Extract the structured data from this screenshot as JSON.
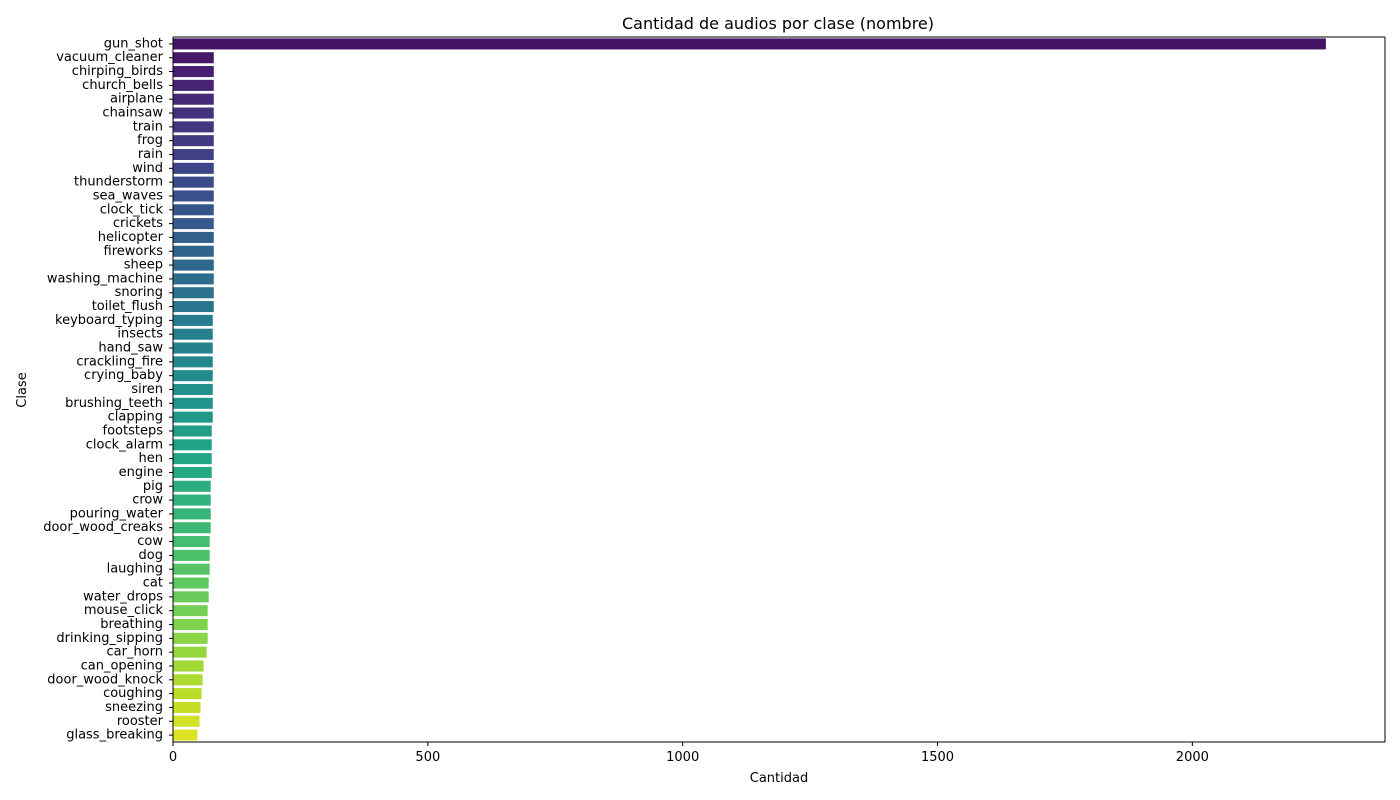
{
  "chart_data": {
    "type": "bar",
    "orientation": "horizontal",
    "title": "Cantidad de audios por clase (nombre)",
    "xlabel": "Cantidad",
    "ylabel": "Clase",
    "xlim": [
      0,
      2378
    ],
    "xticks": [
      0,
      500,
      1000,
      1500,
      2000
    ],
    "grid": false,
    "palette": "viridis",
    "categories": [
      "gun_shot",
      "vacuum_cleaner",
      "chirping_birds",
      "church_bells",
      "airplane",
      "chainsaw",
      "train",
      "frog",
      "rain",
      "wind",
      "thunderstorm",
      "sea_waves",
      "clock_tick",
      "crickets",
      "helicopter",
      "fireworks",
      "sheep",
      "washing_machine",
      "snoring",
      "toilet_flush",
      "keyboard_typing",
      "insects",
      "hand_saw",
      "crackling_fire",
      "crying_baby",
      "siren",
      "brushing_teeth",
      "clapping",
      "footsteps",
      "clock_alarm",
      "hen",
      "engine",
      "pig",
      "crow",
      "pouring_water",
      "door_wood_creaks",
      "cow",
      "dog",
      "laughing",
      "cat",
      "water_drops",
      "mouse_click",
      "breathing",
      "drinking_sipping",
      "car_horn",
      "can_opening",
      "door_wood_knock",
      "coughing",
      "sneezing",
      "rooster",
      "glass_breaking"
    ],
    "values": [
      2262,
      80,
      80,
      80,
      80,
      80,
      80,
      80,
      80,
      80,
      80,
      80,
      80,
      80,
      80,
      80,
      80,
      80,
      80,
      80,
      78,
      78,
      78,
      78,
      78,
      78,
      78,
      78,
      76,
      76,
      76,
      76,
      74,
      74,
      74,
      74,
      72,
      72,
      72,
      70,
      70,
      68,
      68,
      68,
      66,
      60,
      58,
      56,
      54,
      52,
      48
    ]
  }
}
